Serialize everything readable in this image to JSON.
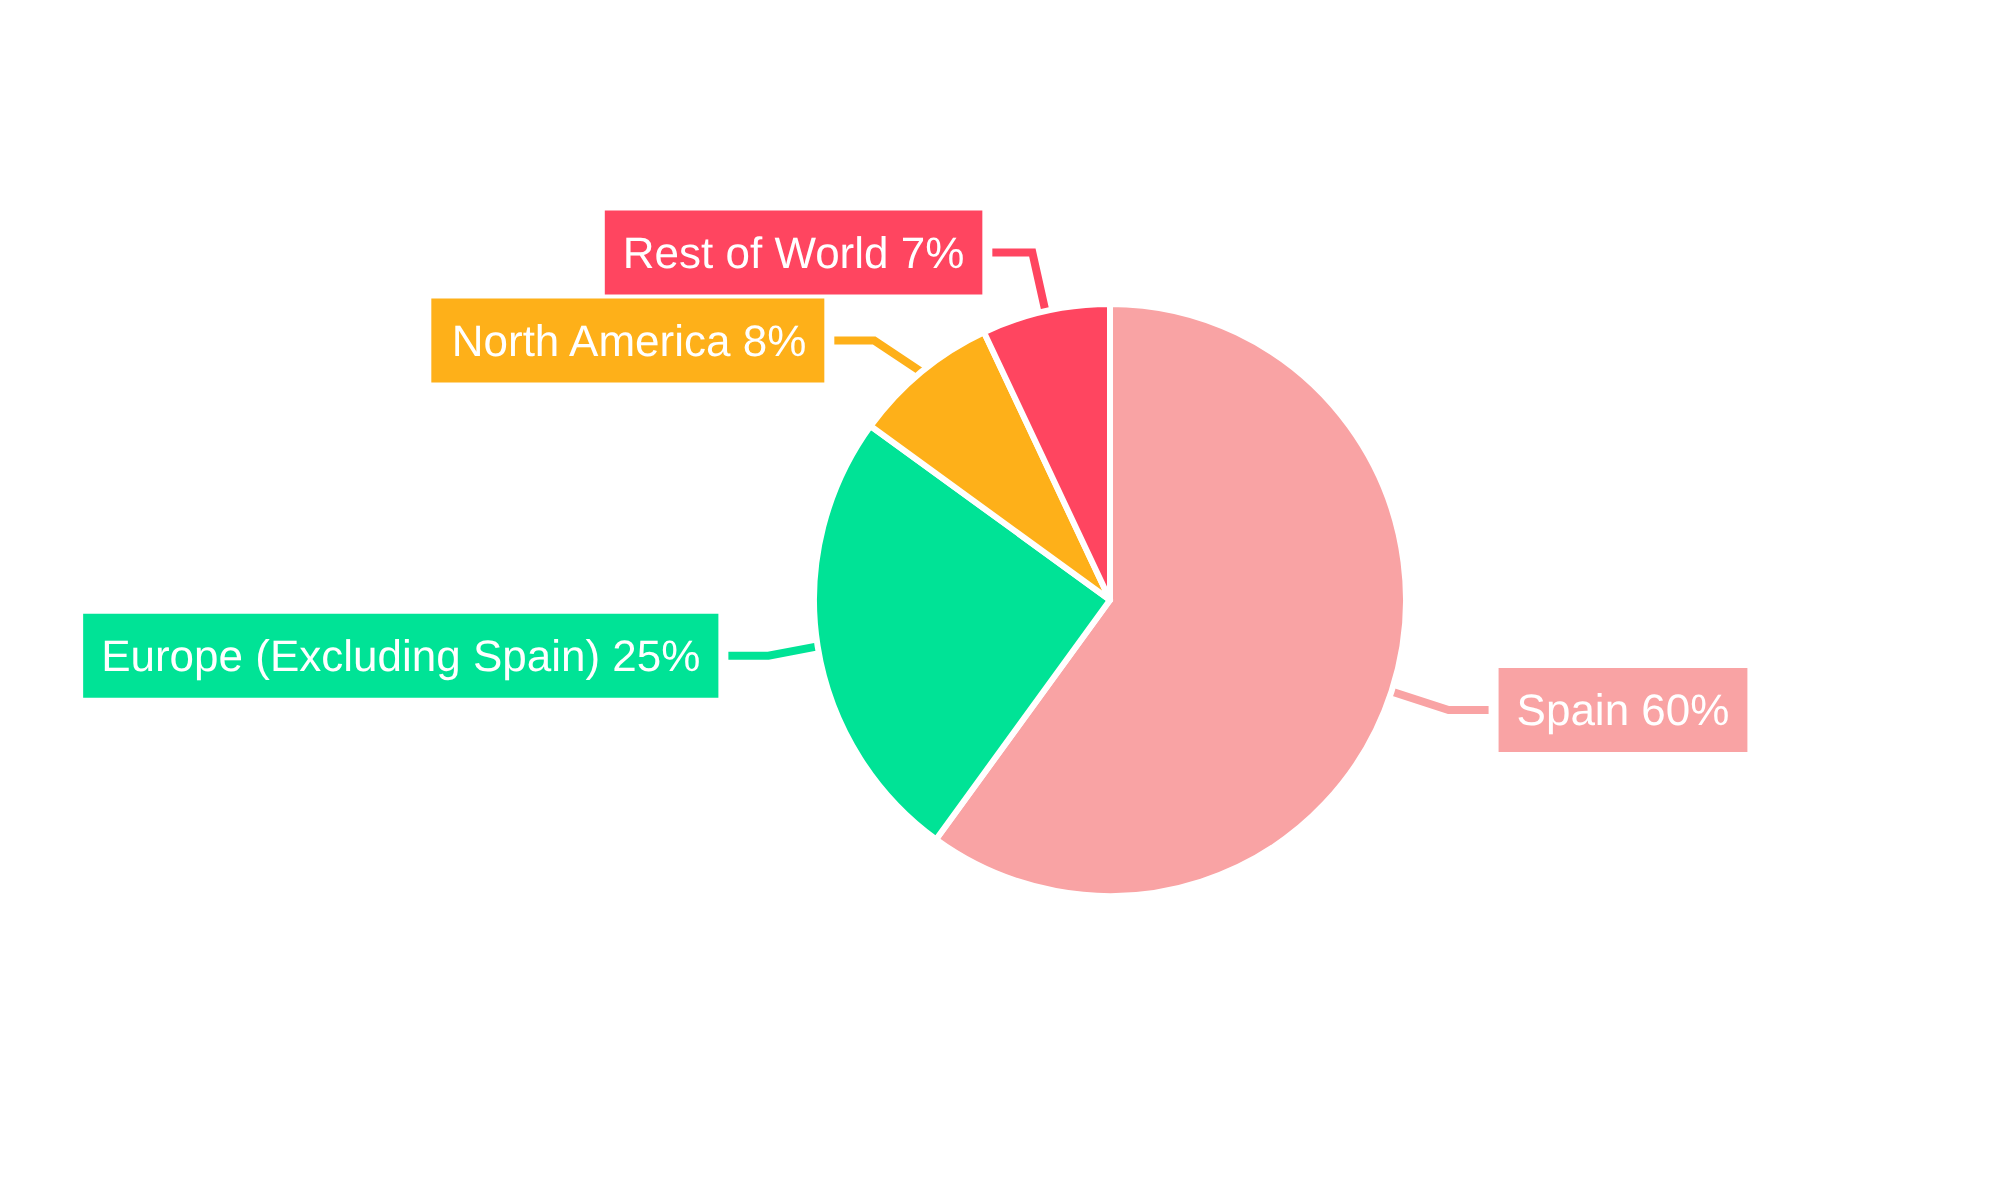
{
  "chart_data": {
    "type": "pie",
    "categories": [
      "Spain",
      "Europe (Excluding Spain)",
      "North America",
      "Rest of World"
    ],
    "values": [
      60,
      25,
      8,
      7
    ],
    "colors": [
      "#f9a3a4",
      "#00e396",
      "#feb019",
      "#ff4560"
    ],
    "value_labels": [
      "60%",
      "25%",
      "8%",
      "7%"
    ]
  }
}
